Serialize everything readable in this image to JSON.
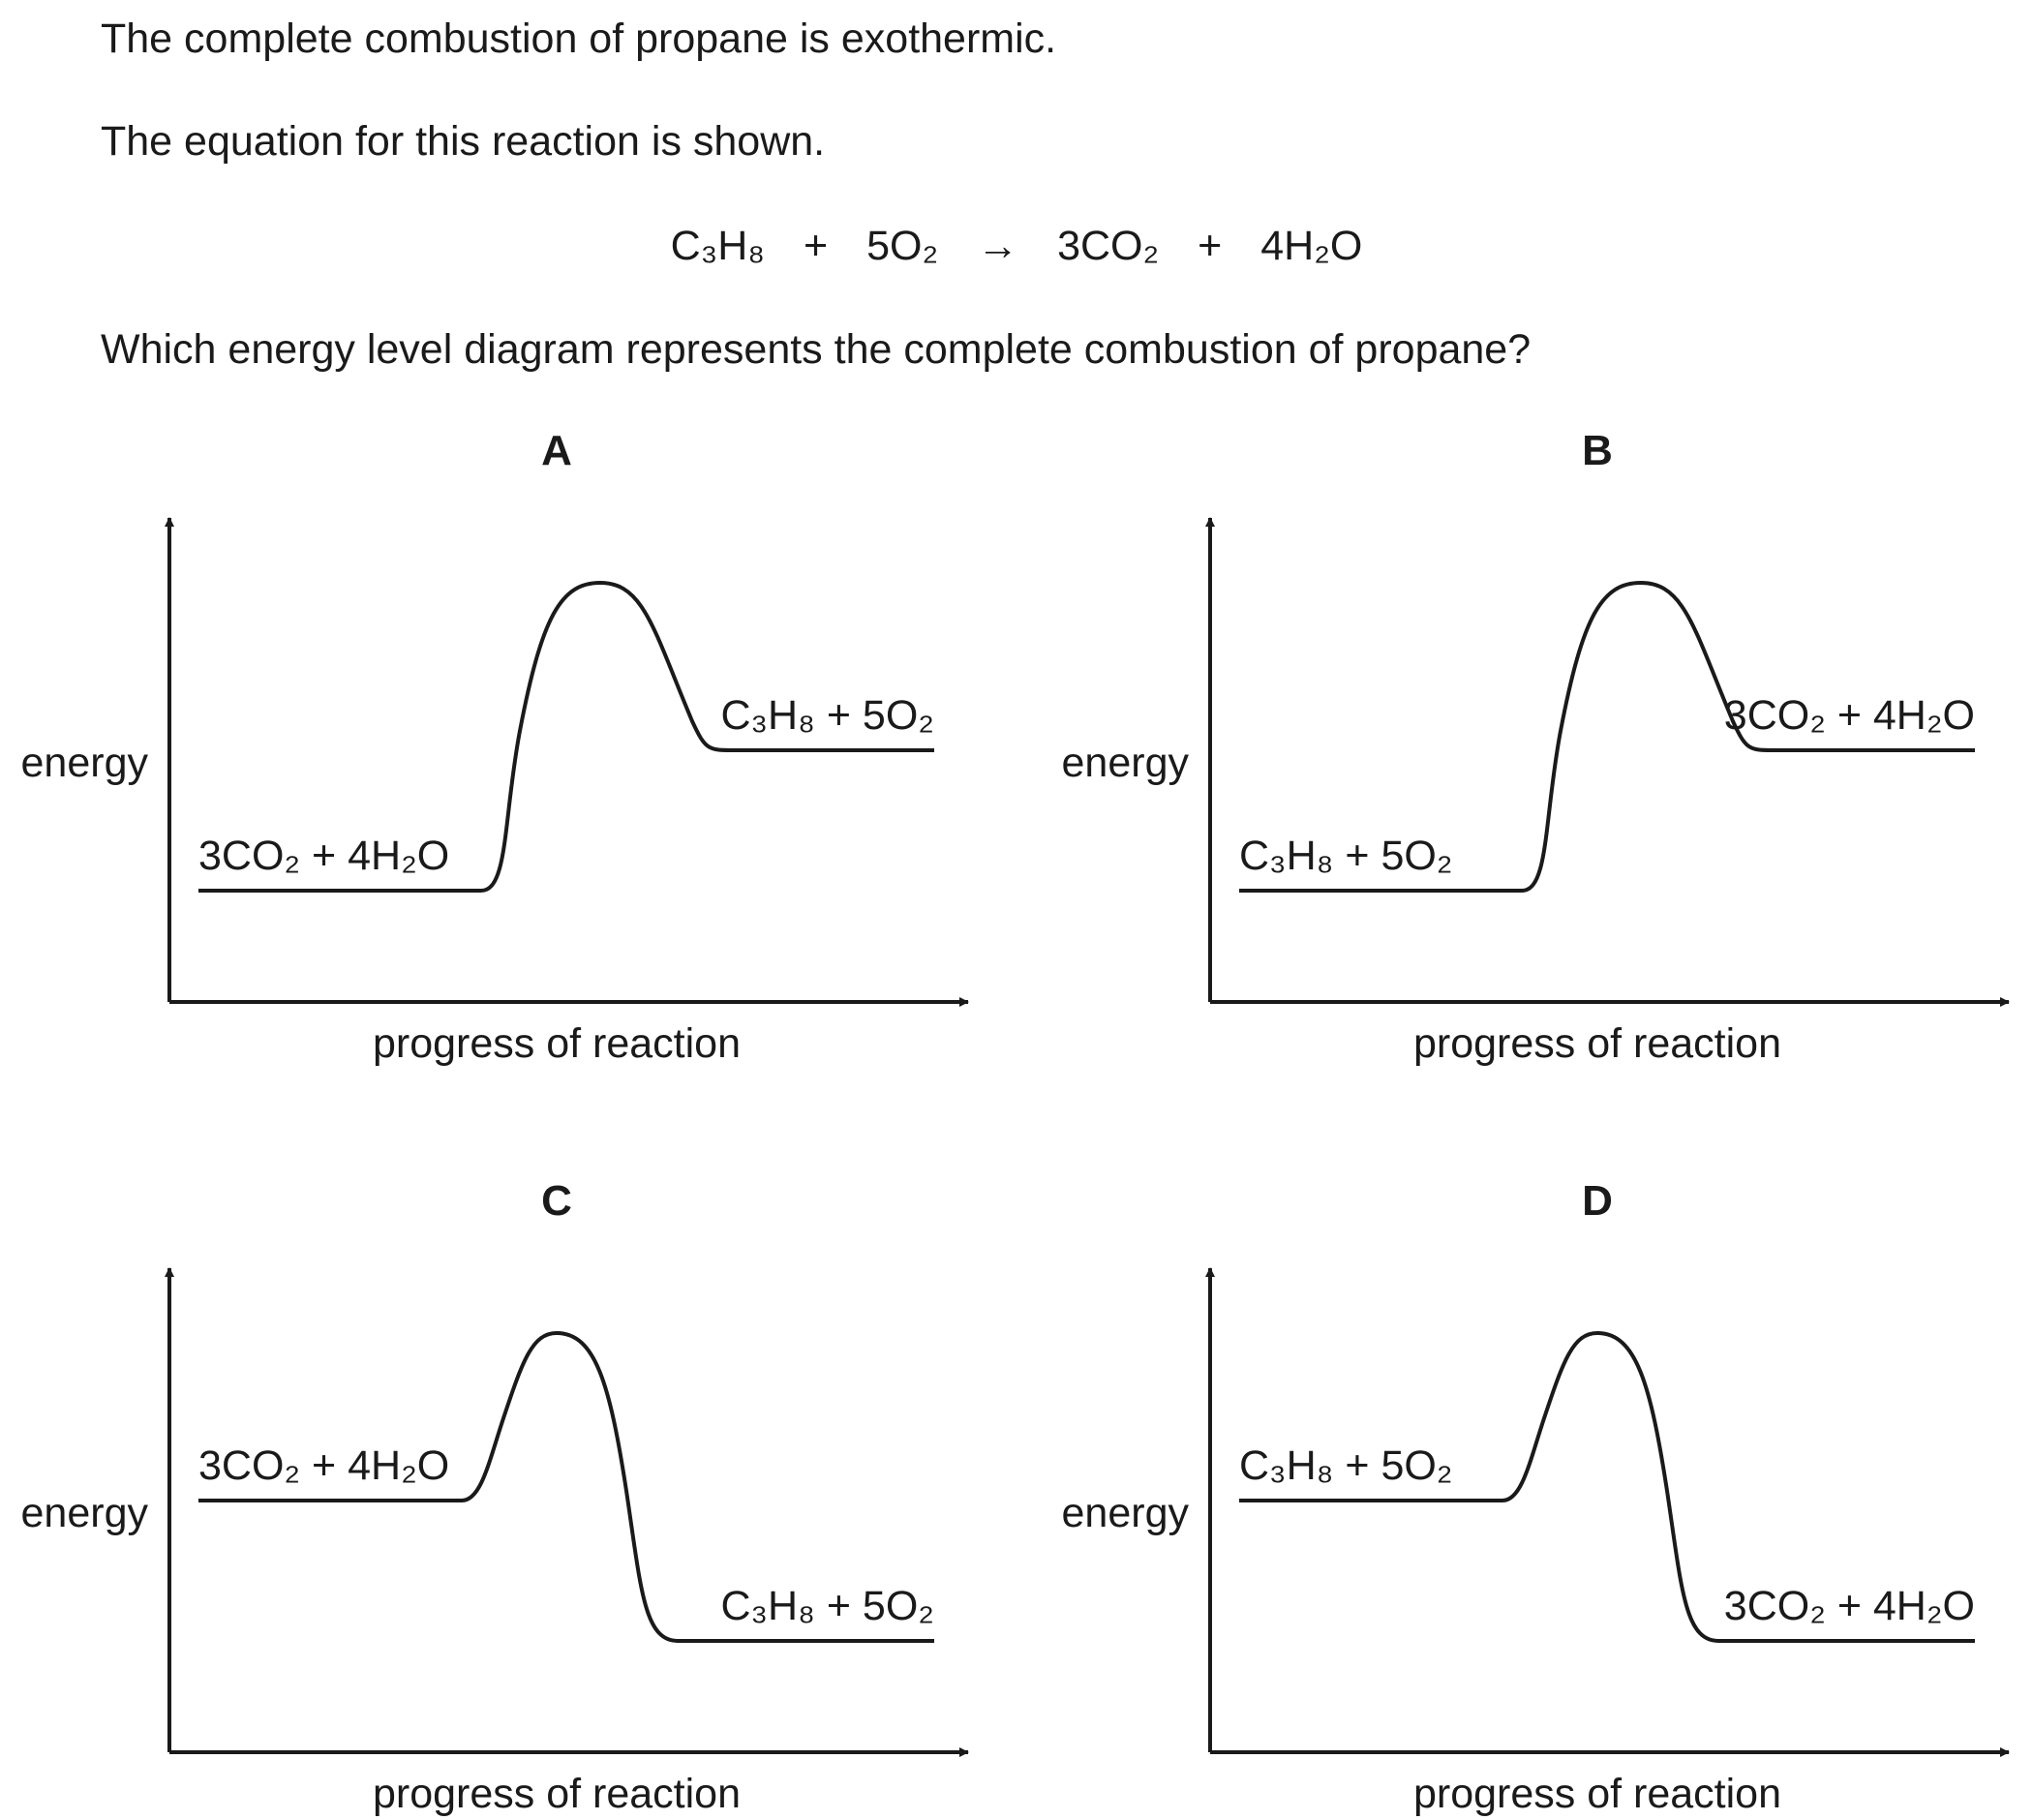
{
  "question": {
    "intro": "The complete combustion of propane is exothermic.",
    "statement": "The equation for this reaction is shown.",
    "prompt": "Which energy level diagram represents the complete combustion of propane?"
  },
  "equation": {
    "reactant_1": "C₃H₈",
    "plus_1": "+",
    "reactant_2": "5O₂",
    "arrow": "→",
    "product_1": "3CO₂",
    "plus_2": "+",
    "product_2": "4H₂O"
  },
  "diagrams": [
    {
      "letter": "A",
      "y_label": "energy",
      "x_label": "progress of reaction",
      "left_label": "3CO₂ + 4H₂O",
      "right_label": "C₃H₈ + 5O₂",
      "left_level": "low",
      "right_level": "high"
    },
    {
      "letter": "B",
      "y_label": "energy",
      "x_label": "progress of reaction",
      "left_label": "C₃H₈ + 5O₂",
      "right_label": "3CO₂ + 4H₂O",
      "left_level": "low",
      "right_level": "high"
    },
    {
      "letter": "C",
      "y_label": "energy",
      "x_label": "progress of reaction",
      "left_label": "3CO₂ + 4H₂O",
      "right_label": "C₃H₈ + 5O₂",
      "left_level": "high",
      "right_level": "low"
    },
    {
      "letter": "D",
      "y_label": "energy",
      "x_label": "progress of reaction",
      "left_label": "C₃H₈ + 5O₂",
      "right_label": "3CO₂ + 4H₂O",
      "left_level": "high",
      "right_level": "low"
    }
  ],
  "colors": {
    "ink": "#1a1a1a"
  }
}
